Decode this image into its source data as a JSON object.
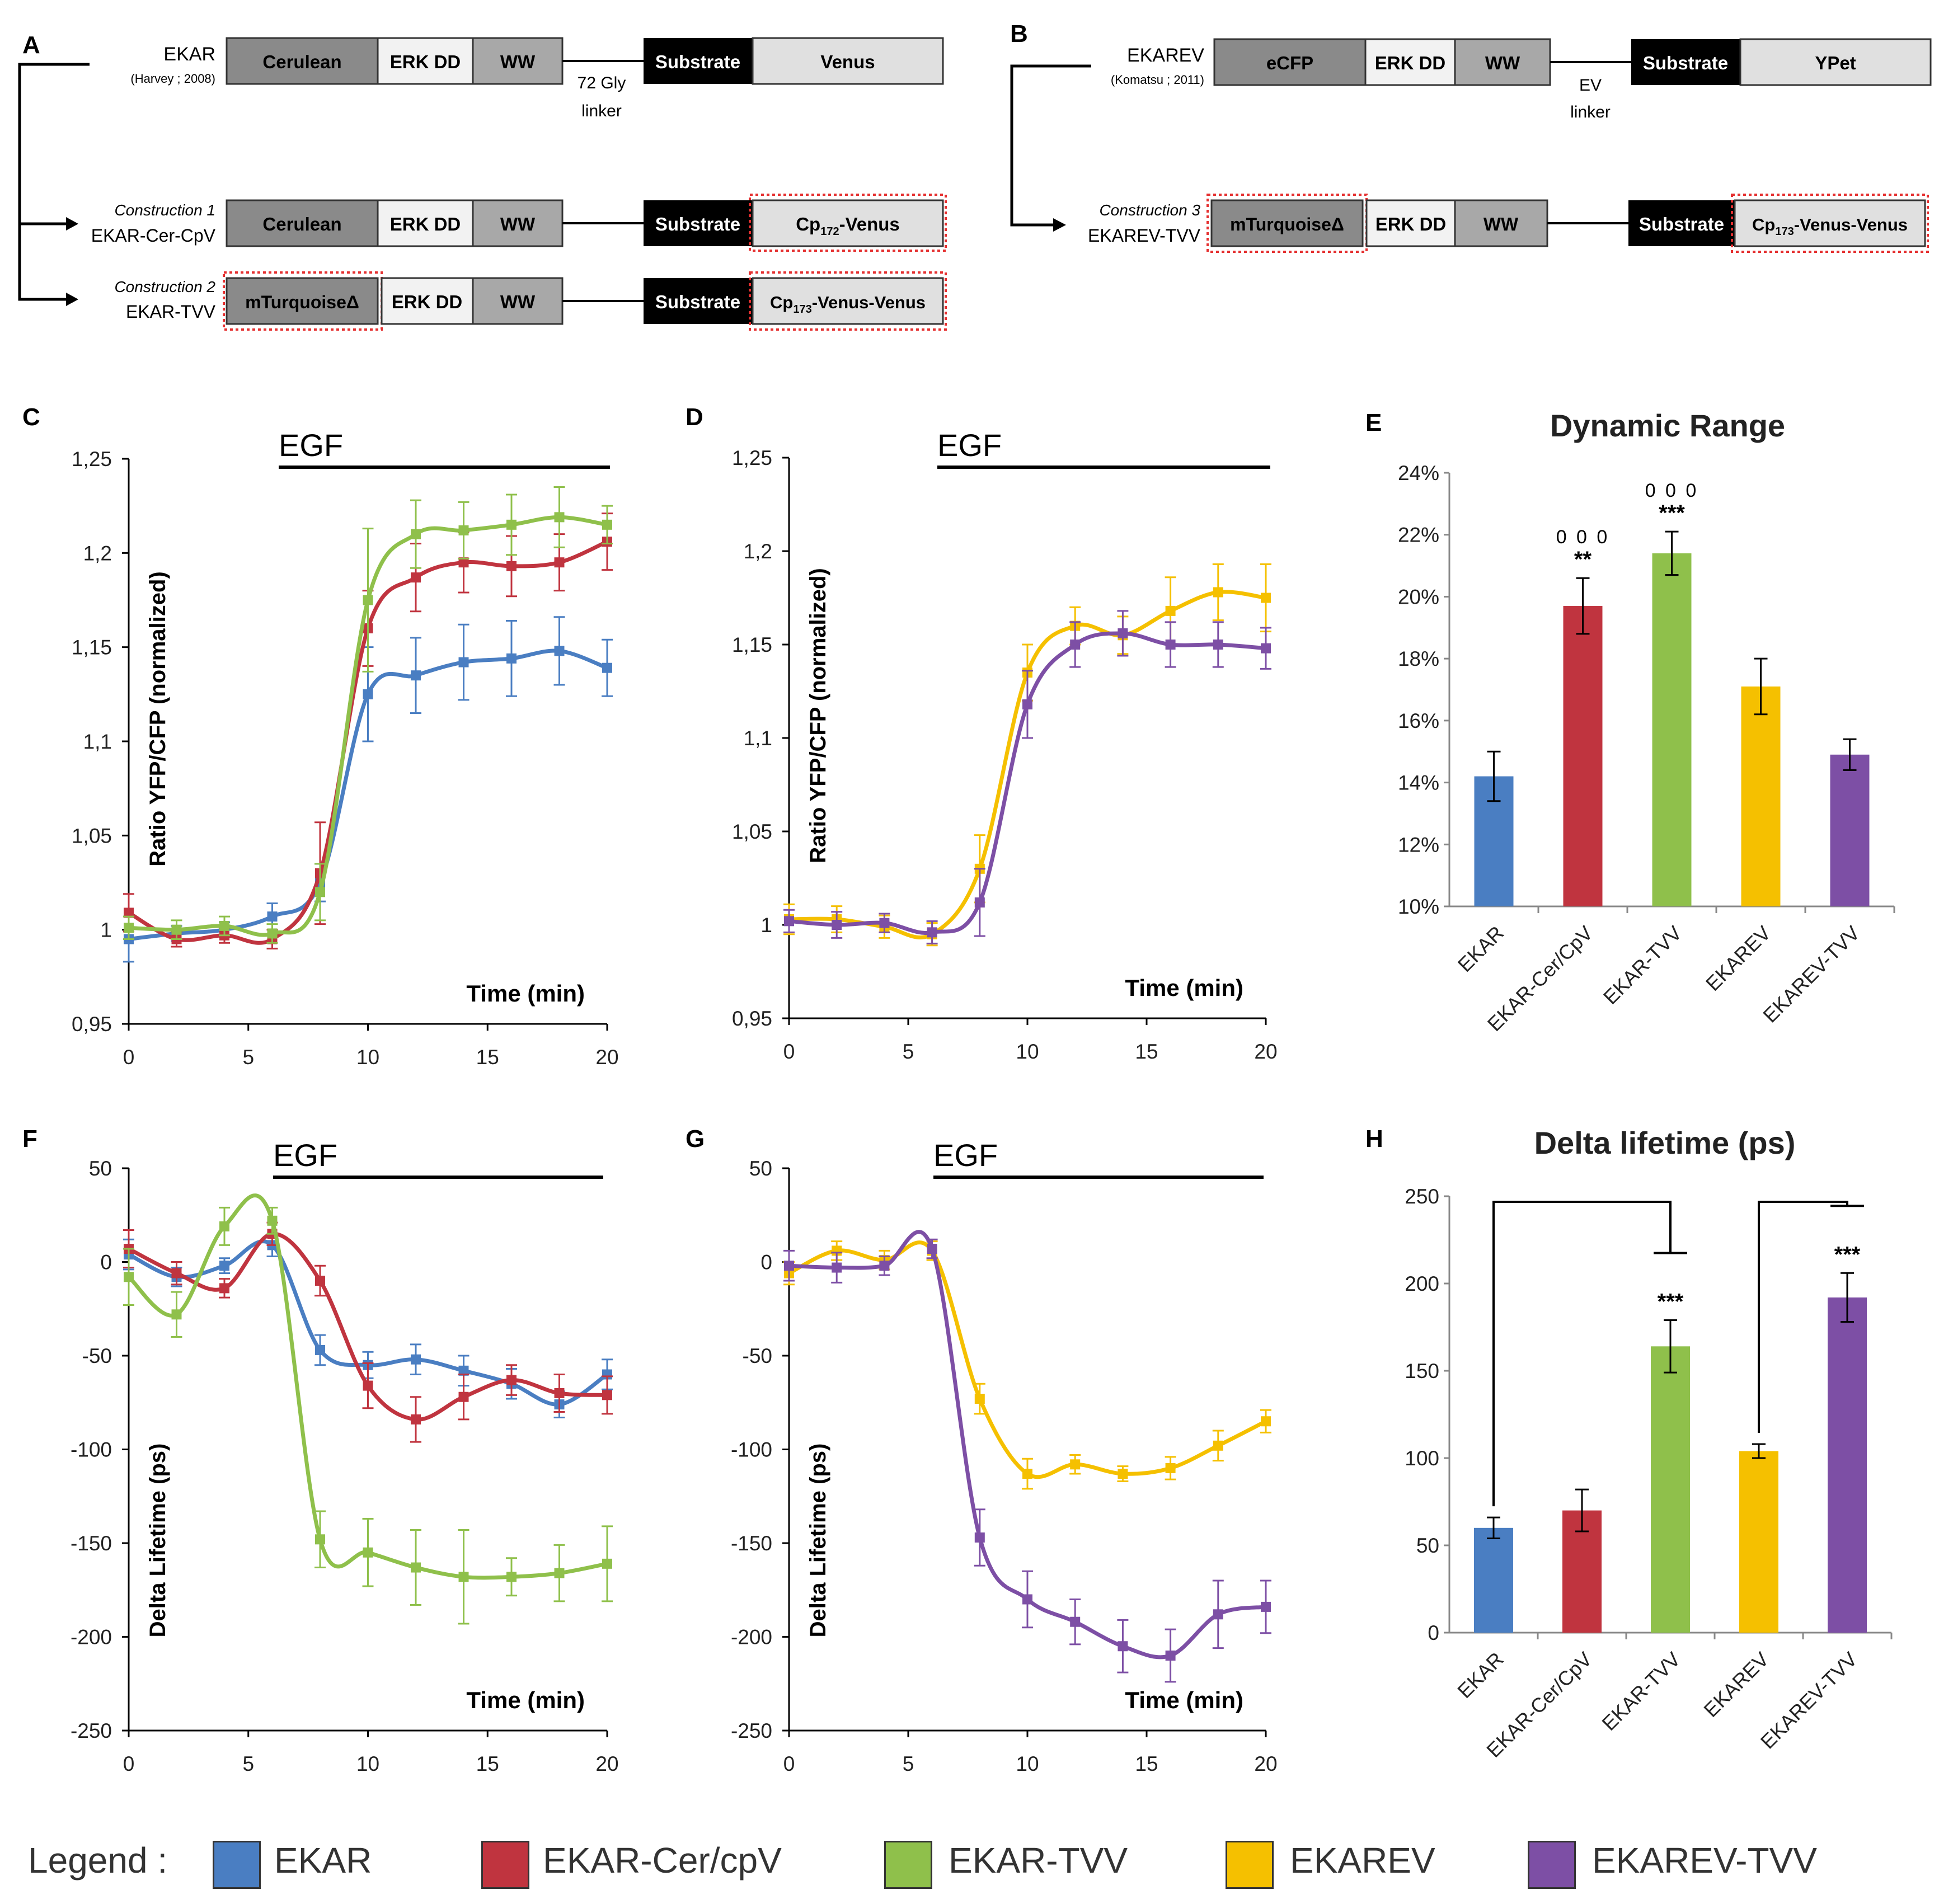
{
  "colors": {
    "EKAR": "#4a7ec2",
    "EKAR-Cer/cpV": "#c0343f",
    "EKAR-TVV": "#8fc04b",
    "EKAREV": "#f5c000",
    "EKAREV-TVV": "#7d4fa5"
  },
  "schematic": {
    "panel_A_label": "A",
    "panel_B_label": "B",
    "ekar": {
      "name": "EKAR",
      "ref": "(Harvey ; 2008)",
      "d1": "Cerulean",
      "d2": "ERK DD",
      "d3": "WW",
      "substrate": "Substrate",
      "acceptor": "Venus",
      "linker": "72 Gly",
      "linker2": "linker"
    },
    "c1": {
      "title": "Construction 1",
      "name": "EKAR-Cer-CpV",
      "d1": "Cerulean",
      "d2": "ERK DD",
      "d3": "WW",
      "substrate": "Substrate",
      "acceptor": "Cp",
      "acceptor_sub": "172",
      "acceptor_rest": "-Venus"
    },
    "c2": {
      "title": "Construction 2",
      "name": "EKAR-TVV",
      "d1": "mTurquoiseΔ",
      "d2": "ERK DD",
      "d3": "WW",
      "substrate": "Substrate",
      "acceptor": "Cp",
      "acceptor_sub": "173",
      "acceptor_rest": "-Venus-Venus"
    },
    "ekarev": {
      "name": "EKAREV",
      "ref": "(Komatsu ; 2011)",
      "d1": "eCFP",
      "d2": "ERK DD",
      "d3": "WW",
      "substrate": "Substrate",
      "acceptor": "YPet",
      "linker": "EV",
      "linker2": "linker"
    },
    "c3": {
      "title": "Construction 3",
      "name": "EKAREV-TVV",
      "d1": "mTurquoiseΔ",
      "d2": "ERK DD",
      "d3": "WW",
      "substrate": "Substrate",
      "acceptor": "Cp",
      "acceptor_sub": "173",
      "acceptor_rest": "-Venus-Venus"
    }
  },
  "chart_data": [
    {
      "panel": "C",
      "type": "line",
      "title": "",
      "annotation": "EGF",
      "ylabel": "Ratio YFP/CFP (normalized)",
      "xlabel": "Time (min)",
      "xlim": [
        0,
        20
      ],
      "ylim": [
        0.95,
        1.25
      ],
      "xticks": [
        "0",
        "5",
        "10",
        "15",
        "20"
      ],
      "yticks": [
        "0,95",
        "1",
        "1,05",
        "1,1",
        "1,15",
        "1,2",
        "1,25"
      ],
      "x": [
        0,
        2,
        4,
        6,
        8,
        10,
        12,
        14,
        16,
        18,
        20
      ],
      "series": [
        {
          "name": "EKAR",
          "values": [
            0.995,
            0.998,
            1.0,
            1.007,
            1.025,
            1.125,
            1.135,
            1.142,
            1.144,
            1.148,
            1.139
          ],
          "errors": [
            0.012,
            0.004,
            0.004,
            0.007,
            0.01,
            0.025,
            0.02,
            0.02,
            0.02,
            0.018,
            0.015
          ]
        },
        {
          "name": "EKAR-Cer/cpV",
          "values": [
            1.009,
            0.995,
            0.997,
            0.995,
            1.03,
            1.16,
            1.187,
            1.195,
            1.193,
            1.195,
            1.206
          ],
          "errors": [
            0.01,
            0.004,
            0.004,
            0.005,
            0.027,
            0.02,
            0.018,
            0.016,
            0.016,
            0.015,
            0.015
          ]
        },
        {
          "name": "EKAR-TVV",
          "values": [
            1.001,
            1.0,
            1.002,
            0.998,
            1.02,
            1.175,
            1.21,
            1.212,
            1.215,
            1.219,
            1.215
          ],
          "errors": [
            0.006,
            0.005,
            0.005,
            0.005,
            0.015,
            0.038,
            0.018,
            0.015,
            0.016,
            0.016,
            0.01
          ]
        }
      ]
    },
    {
      "panel": "D",
      "type": "line",
      "title": "",
      "annotation": "EGF",
      "ylabel": "Ratio YFP/CFP (normalized)",
      "xlabel": "Time (min)",
      "xlim": [
        0,
        20
      ],
      "ylim": [
        0.95,
        1.25
      ],
      "xticks": [
        "0",
        "5",
        "10",
        "15",
        "20"
      ],
      "yticks": [
        "0,95",
        "1",
        "1,05",
        "1,1",
        "1,15",
        "1,2",
        "1,25"
      ],
      "x": [
        0,
        2,
        4,
        6,
        8,
        10,
        12,
        14,
        16,
        18,
        20
      ],
      "series": [
        {
          "name": "EKAREV",
          "values": [
            1.003,
            1.003,
            0.999,
            0.995,
            1.03,
            1.135,
            1.16,
            1.155,
            1.168,
            1.178,
            1.175
          ],
          "errors": [
            0.008,
            0.007,
            0.006,
            0.006,
            0.018,
            0.015,
            0.01,
            0.01,
            0.018,
            0.015,
            0.018
          ]
        },
        {
          "name": "EKAREV-TVV",
          "values": [
            1.002,
            1.0,
            1.001,
            0.996,
            1.012,
            1.118,
            1.15,
            1.156,
            1.15,
            1.15,
            1.148
          ],
          "errors": [
            0.006,
            0.007,
            0.005,
            0.006,
            0.018,
            0.018,
            0.012,
            0.012,
            0.012,
            0.012,
            0.011
          ]
        }
      ]
    },
    {
      "panel": "E",
      "type": "bar",
      "title": "Dynamic Range",
      "categories": [
        "EKAR",
        "EKAR-Cer/CpV",
        "EKAR-TVV",
        "EKAREV",
        "EKAREV-TVV"
      ],
      "values": [
        14.2,
        19.7,
        21.4,
        17.1,
        14.9
      ],
      "errors": [
        0.8,
        0.9,
        0.7,
        0.9,
        0.5
      ],
      "ylim": [
        10,
        24
      ],
      "yticks": [
        "10%",
        "12%",
        "14%",
        "16%",
        "18%",
        "20%",
        "22%",
        "24%"
      ],
      "stars": [
        "",
        "**",
        "***",
        "",
        ""
      ],
      "circles": [
        "",
        "0 0 0",
        "0 0 0",
        "",
        ""
      ]
    },
    {
      "panel": "F",
      "type": "line",
      "title": "",
      "annotation": "EGF",
      "ylabel": "Delta Lifetime (ps)",
      "xlabel": "Time (min)",
      "xlim": [
        0,
        20
      ],
      "ylim": [
        -250,
        50
      ],
      "xticks": [
        "0",
        "5",
        "10",
        "15",
        "20"
      ],
      "yticks": [
        "-250",
        "-200",
        "-150",
        "-100",
        "-50",
        "0",
        "50"
      ],
      "x": [
        0,
        2,
        4,
        6,
        8,
        10,
        12,
        14,
        16,
        18,
        20
      ],
      "series": [
        {
          "name": "EKAR",
          "values": [
            4,
            -8,
            -2,
            9,
            -47,
            -55,
            -52,
            -58,
            -65,
            -76,
            -60
          ],
          "errors": [
            8,
            5,
            4,
            6,
            8,
            7,
            8,
            8,
            8,
            7,
            8
          ]
        },
        {
          "name": "EKAR-Cer/cpV",
          "values": [
            7,
            -6,
            -14,
            15,
            -10,
            -66,
            -84,
            -72,
            -63,
            -70,
            -71
          ],
          "errors": [
            10,
            6,
            5,
            6,
            8,
            12,
            12,
            12,
            8,
            10,
            10
          ]
        },
        {
          "name": "EKAR-TVV",
          "values": [
            -8,
            -28,
            19,
            22,
            -148,
            -155,
            -163,
            -168,
            -168,
            -166,
            -161
          ],
          "errors": [
            15,
            12,
            10,
            7,
            15,
            18,
            20,
            25,
            10,
            15,
            20
          ]
        }
      ]
    },
    {
      "panel": "G",
      "type": "line",
      "title": "",
      "annotation": "EGF",
      "ylabel": "Delta Lifetime (ps)",
      "xlabel": "Time (min)",
      "xlim": [
        0,
        20
      ],
      "ylim": [
        -250,
        50
      ],
      "xticks": [
        "0",
        "5",
        "10",
        "15",
        "20"
      ],
      "yticks": [
        "-250",
        "-200",
        "-150",
        "-100",
        "-50",
        "0",
        "50"
      ],
      "x": [
        0,
        2,
        4,
        6,
        8,
        10,
        12,
        14,
        16,
        18,
        20
      ],
      "series": [
        {
          "name": "EKAREV",
          "values": [
            -6,
            6,
            1,
            6,
            -73,
            -113,
            -108,
            -113,
            -110,
            -98,
            -85
          ],
          "errors": [
            6,
            5,
            5,
            5,
            8,
            8,
            5,
            4,
            6,
            8,
            6
          ]
        },
        {
          "name": "EKAREV-TVV",
          "values": [
            -2,
            -3,
            -2,
            7,
            -147,
            -180,
            -192,
            -205,
            -210,
            -188,
            -184
          ],
          "errors": [
            8,
            8,
            5,
            5,
            15,
            15,
            12,
            14,
            14,
            18,
            14
          ]
        }
      ]
    },
    {
      "panel": "H",
      "type": "bar",
      "title": "Delta lifetime (ps)",
      "categories": [
        "EKAR",
        "EKAR-Cer/CpV",
        "EKAR-TVV",
        "EKAREV",
        "EKAREV-TVV"
      ],
      "values": [
        60,
        70,
        164,
        104,
        192
      ],
      "errors": [
        6,
        12,
        15,
        4,
        14
      ],
      "ylim": [
        0,
        250
      ],
      "yticks": [
        "0",
        "50",
        "100",
        "150",
        "200",
        "250"
      ],
      "stars": [
        "",
        "",
        "***",
        "",
        "***"
      ],
      "brackets": [
        [
          0,
          2
        ],
        [
          3,
          4
        ]
      ]
    }
  ],
  "panel_labels": {
    "C": "C",
    "D": "D",
    "E": "E",
    "F": "F",
    "G": "G",
    "H": "H"
  },
  "legend": {
    "title": "Legend :",
    "items": [
      "EKAR",
      "EKAR-Cer/cpV",
      "EKAR-TVV",
      "EKAREV",
      "EKAREV-TVV"
    ]
  }
}
